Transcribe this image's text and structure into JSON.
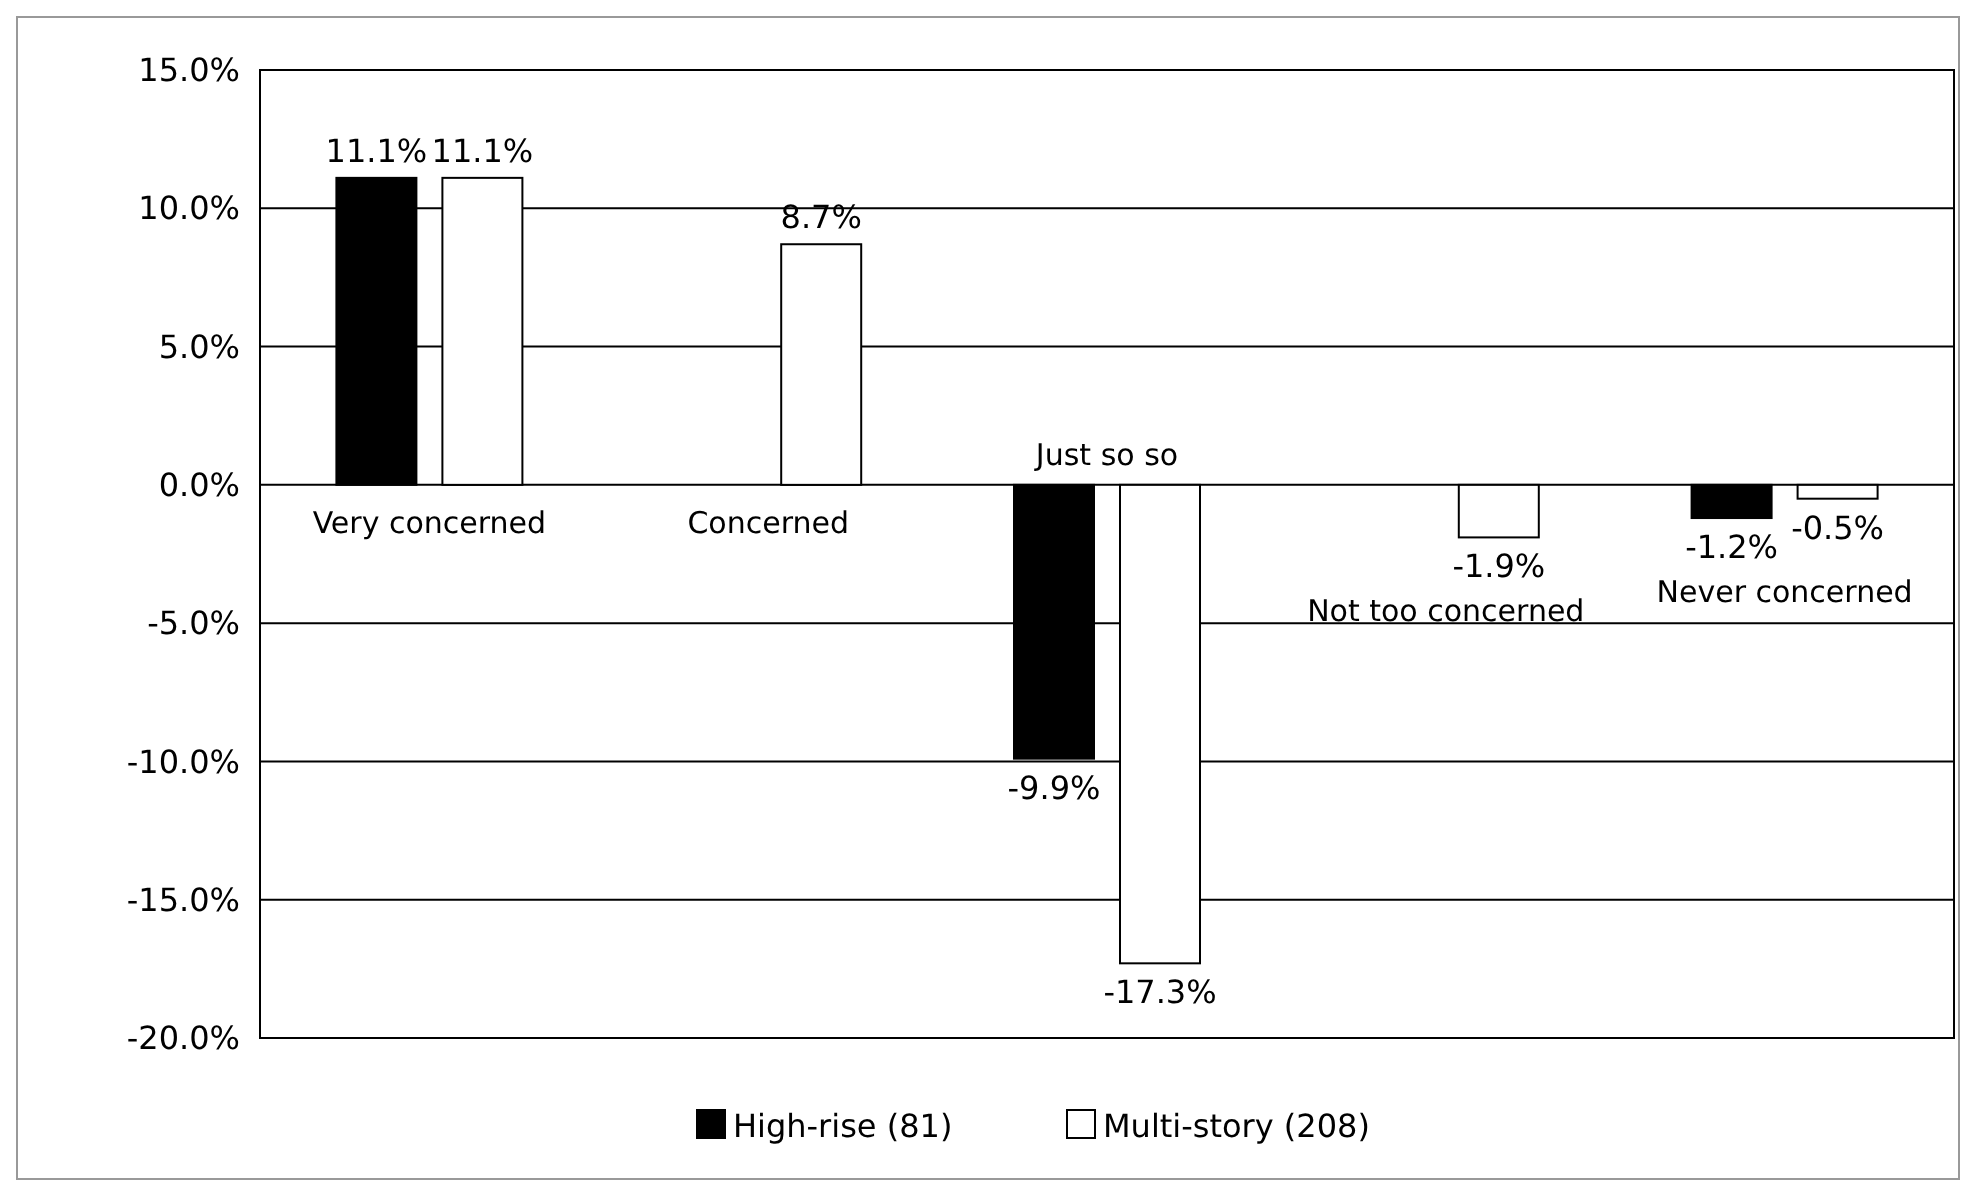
{
  "chart_data": {
    "type": "bar",
    "categories": [
      "Very concerned",
      "Concerned",
      "Just so so",
      "Not too concerned",
      "Never concerned"
    ],
    "series": [
      {
        "name": "High-rise (81)",
        "color": "#000000",
        "values": [
          11.1,
          null,
          -9.9,
          null,
          -1.2
        ],
        "value_labels": [
          "11.1%",
          null,
          "-9.9%",
          null,
          "-1.2%"
        ]
      },
      {
        "name": "Multi-story (208)",
        "color": "#ffffff",
        "values": [
          11.1,
          8.7,
          -17.3,
          -1.9,
          -0.5
        ],
        "value_labels": [
          "11.1%",
          "8.7%",
          "-17.3%",
          "-1.9%",
          "-0.5%"
        ]
      }
    ],
    "ylim": [
      -20,
      15
    ],
    "yticks": [
      {
        "value": -20,
        "label": "-20.0%"
      },
      {
        "value": -15,
        "label": "-15.0%"
      },
      {
        "value": -10,
        "label": "-10.0%"
      },
      {
        "value": -5,
        "label": "-5.0%"
      },
      {
        "value": 0,
        "label": "0.0%"
      },
      {
        "value": 5,
        "label": "5.0%"
      },
      {
        "value": 10,
        "label": "10.0%"
      },
      {
        "value": 15,
        "label": "15.0%"
      }
    ],
    "grid": "y",
    "legend": "bottom"
  }
}
